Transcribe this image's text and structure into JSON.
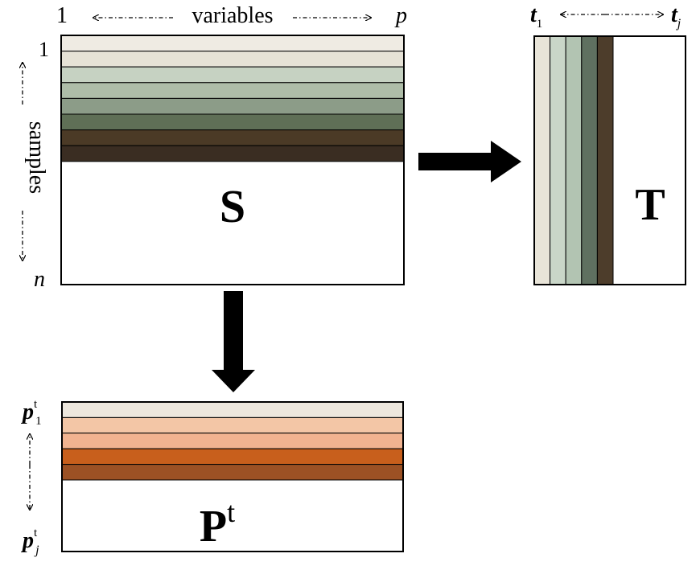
{
  "matrix_s": {
    "label": "S",
    "col_start": "1",
    "col_end": "p",
    "row_start": "1",
    "row_end": "n",
    "cols_caption": "variables",
    "rows_caption": "samples",
    "band_colors": [
      "#efebe3",
      "#e6e2d6",
      "#c6d2c2",
      "#aebda8",
      "#8c9c88",
      "#5f6f56",
      "#4b3a26",
      "#3a2d22"
    ]
  },
  "matrix_t": {
    "label": "T",
    "col_start_base": "t",
    "col_start_sub": "1",
    "col_end_base": "t",
    "col_end_sub": "j",
    "band_colors": [
      "#e8e4d8",
      "#c9d6c8",
      "#b2c4b2",
      "#5f7060",
      "#4d3d2b"
    ]
  },
  "matrix_p": {
    "label_base": "P",
    "label_sup": "t",
    "row_start_base": "p",
    "row_start_sup": "t",
    "row_start_sub": "1",
    "row_end_base": "p",
    "row_end_sup": "t",
    "row_end_sub": "j",
    "band_colors": [
      "#ede7dd",
      "#f3c6a6",
      "#f1b390",
      "#c85f1c",
      "#9c5124"
    ]
  }
}
